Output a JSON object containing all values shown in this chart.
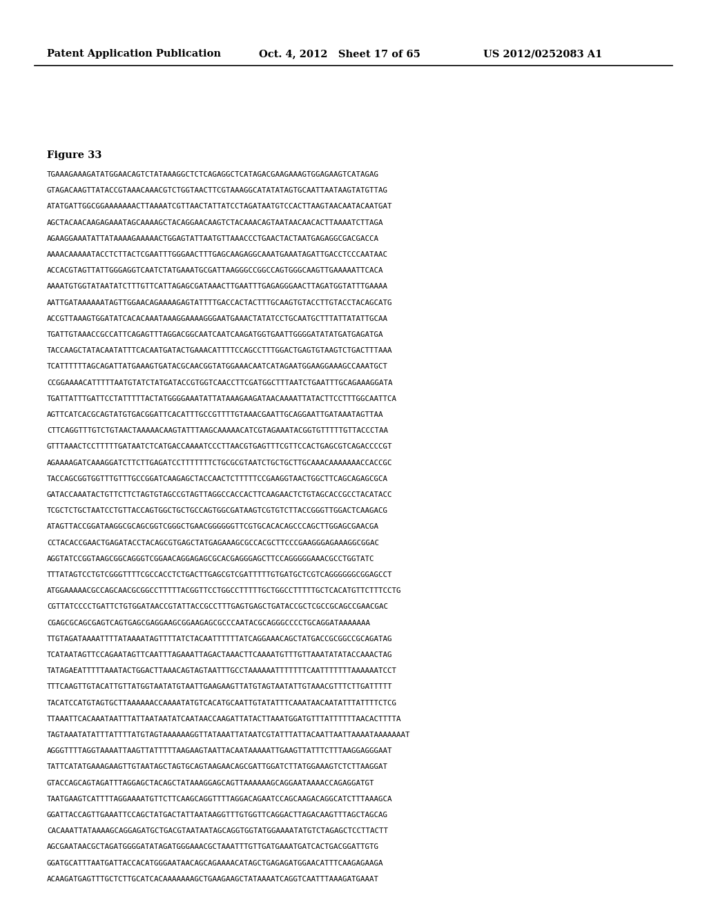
{
  "header_left": "Patent Application Publication",
  "header_mid": "Oct. 4, 2012   Sheet 17 of 65",
  "header_right": "US 2012/0252083 A1",
  "figure_label": "Figure 33",
  "background_color": "#ffffff",
  "text_color": "#000000",
  "header_font_size": 10.5,
  "figure_label_font_size": 10.5,
  "body_font_size": 7.8,
  "sequence_lines": [
    "TGAAAGAAAGATATGGAACAGTCTATAAAGGCTCTCAGAGGCTCATAGACGAAGAAAGTGGAGAAGTCATAGAG",
    "GTAGACAAGTTATACCGTAAACAAACGTCTGGTAACTTCGTAAAGGCATATATAGTGCAATTAATAAGTATGTTAG",
    "ATATGATTGGCGGAAAAAAACTTAAAATCGTTAACTATTATCCTAGATAATGTCCACTTAAGTAACAATACAATGAT",
    "AGCTACAACAAGAGAAATAGCAAAAGCTACAGGAACAAGTCTACAAACAGTAATAACAACACTTAAAATCTTAGA",
    "AGAAGGAAATATTATAAAAGAAAAACTGGAGTATTAATGTTAAACCCTGAACTACTAATGAGAGGCGACGACCA",
    "AAAACAAAAATACCTCTTACTCGAATTTGGGAACTTTGAGCAAGAGGCAAATGAAATAGATTGACCTCCCAATAAC",
    "ACCACGTAGTTATTGGGAGGTCAATCTATGAAATGCGATTAAGGGCCGGCCAGTGGGCAAGTTGAAAAATTCACA",
    "AAAATGTGGTATAATATCTTTGTTCATTAGAGCGATAAACTTGAATTTGAGAGGGAACTTAGATGGTATTTGAAAA",
    "AATTGATAAAAAATAGTTGGAACAGAAAAGAGTATTTTGACCACTACTTTGCAAGTGTACCTTGTACCTACAGCATG",
    "ACCGTTAAAGTGGATATCACACAAATAAAGGAAAAGGGAATGAAACTATATCCTGCAATGCTTTATTATATTGCAA",
    "TGATTGTAAACCGCCATTCAGAGTTTAGGACGGCAATCAATCAAGATGGTGAATTGGGGATATATGATGAGATGA",
    "TACCAAGCTATACAATATTTCACAATGATACTGAAACATTTTCCAGCCTTTGGACTGAGTGTAAGTCTGACTTTAAA",
    "TCATTTTTTAGCAGATTATGAAAGTGATACGCAACGGTATGGAAACAATCATAGAATGGAAGGAAAGCCAAATGCT",
    "CCGGAAAACATTTTTAATGTATCTATGATACCGTGGTCAACCTTCGATGGCTTTAATCTGAATTTGCAGAAAGGATA",
    "TGATTATTTGATTCCTATTTTTACTATGGGGAAATATTATAAAGAAGATAACAAAATTATACTTCCTTTGGCAATTCA",
    "AGTTCATCACGCAGTATGTGACGGATTCACATTTGCCGTTTTGTAAACGAATTGCAGGAATTGATAAATAGTTAA",
    "CTTCAGGTTTGTCTGTAACTAAAAACAAGTATTTAAGCAAAAACATCGTAGAAATACGGTGTTTTTGTTACCCTAA",
    "GTTTAAACTCCTTTTTGATAATCTCATGACCAAAATCCCTTAACGTGAGTTTCGTTCCACTGAGCGTCAGACCCCGT",
    "AGAAAAGATCAAAGGATCTTCTTGAGATCCTTTTTTTCTGCGCGTAATCTGCTGCTTGCAAACAAAAAAACCACCGC",
    "TACCAGCGGTGGTTTGTTTGCCGGATCAAGAGCTACCAACTCTTTTTCCGAAGGTAACTGGCTTCAGCAGAGCGCA",
    "GATACCAAATACTGTTCTTCTAGTGTAGCCGTAGTTAGGCCACCACTTCAAGAACTCTGTAGCACCGCCTACATACC",
    "TCGCTCTGCTAATCCTGTTACCAGTGGCTGCTGCCAGTGGCGATAAGTCGTGTCTTACCGGGTTGGACTCAAGACG",
    "ATAGTTACCGGATAAGGCGCAGCGGTCGGGCTGAACGGGGGGTTCGTGCACACAGCCCAGCTTGGAGCGAACGA",
    "CCTACACCGAACTGAGATACCTACAGCGTGAGCTATGAGAAAGCGCCACGCTTCCCGAAGGGAGAAAGGCGGAC",
    "AGGTATCCGGTAAGCGGCAGGGTCGGAACAGGAGAGCGCACGAGGGAGCTTCCAGGGGGAAACGCCTGGTATC",
    "TTTATAGTCCTGTCGGGTTTTCGCCACCTCTGACTTGAGCGTCGATTTTTGTGATGCTCGTCAGGGGGGCGGAGCCT",
    "ATGGAAAAACGCCAGCAACGCGGCCTTTTTACGGTTCCTGGCCTTTTTGCTGGCCTTTTTGCTCACATGTTCTTTCCTG",
    "CGTTATCCCCTGATTCTGTGGATAACCGTATTACCGCCTTTGAGTGAGCTGATACCGCTCGCCGCAGCCGAACGAC",
    "CGAGCGCAGCGAGTCAGTGAGCGAGGAAGCGGAAGAGCGCCCAATACGCAGGGCCCCTGCAGGATAAAAAAA",
    "TTGTAGATAAAATTTTATAAAATAGTTTTATCTACAATTTTTTATCAGGAAACAGCTATGACCGCGGCCGCAGATAG",
    "TCATAATAGTTCCAGAATAGTTCAATTTAGAAATTAGACTAAACTTCAAAATGTTTGTTAAATATATACCAAACTAG",
    "TATAGAEATTTTTAAATACTGGACTTAAACAGTAGTAATTTGCCTAAAAAATTTTTTTCAATTTTTTTAAAAAATCCT",
    "TTTCAAGTTGTACATTGTTATGGTAATATGTAATTGAAGAAGTTATGTAGTAATATTGTAAACGTTTCTTGATTTTT",
    "TACATCCATGTAGTGCTTAAAAAACCAAAATATGTCACATGCAATTGTATATTTCAAATAACAATATTTATTTTCTCG",
    "TTAAATTCACAAATAATTTATTAATAATATCAATAACCAAGATTATACTTAAATGGATGTTTATTTTTTAACACTTTTA",
    "TAGTAAATATATTTATTTTATGTAGTAAAAAAGGTTATAAATTATAATCGTATTTATTACAATTAATTAAAATAAAAAAAT",
    "AGGGTTTTAGGTAAAATTAAGTTATTTTTAAGAAGTAATTACAATAAAAATTGAAGTTATTTCTTTAAGGAGGGAAT",
    "TATTCATATGAAAGAAGTTGTAATAGCTAGTGCAGTAAGAACAGCGATTGGATCTTATGGAAAGTCTCTTAAGGAT",
    "GTACCAGCAGTAGATTTAGGAGCTACAGCTATAAAGGAGCAGTTAAAAAAGCAGGAATAAAACCAGAGGATGT",
    "TAATGAAGTCATTTTAGGAAAATGTTCTTCAAGCAGGTTTTAGGACAGAATCCAGCAAGACAGGCATCTTTAAAGCA",
    "GGATTACCAGTTGAAATTCCAGCTATGACTATTAATAAGGTTTGTGGTTCAGGACTTAGACAAGTTTAGCTAGCAG",
    "CACAAATTATAAAAGCAGGAGATGCTGACGTAATAATAGCAGGTGGTATGGAAAATATGTCTAGAGCTCCTTACTT",
    "AGCGAATAACGCTAGATGGGGATATAGATGGGAAACGCTAAATTTGTTGATGAAATGATCACTGACGGATTGTG",
    "GGATGCATTTAATGATTACCACATGGGAATAACAGCAGAAAACATAGCTGAGAGATGGAACATTTCAAGAGAAGA",
    "ACAAGATGAGTTTGCTCTTGCATCACAAAAAAAGCTGAAGAAGCTATAAAATCAGGTCAATTTAAAGATGAAAT"
  ]
}
